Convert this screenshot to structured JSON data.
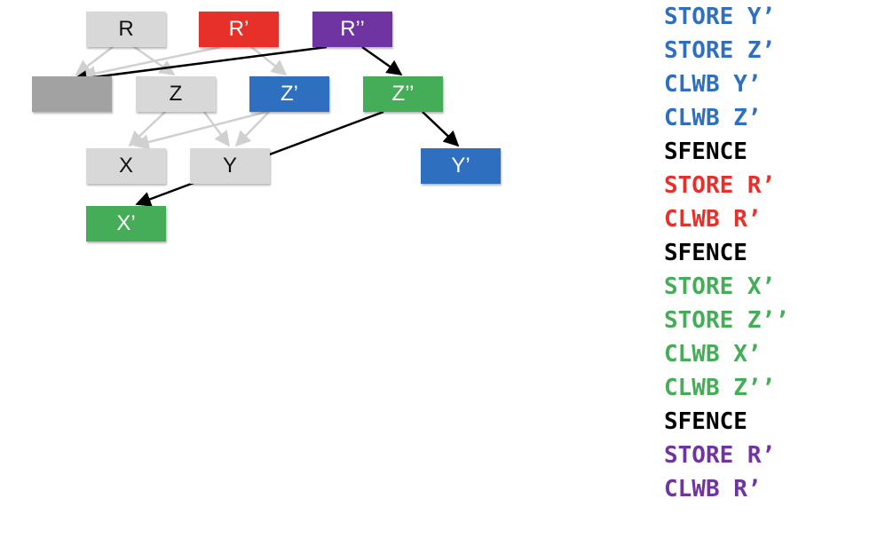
{
  "diagram": {
    "nodes": {
      "R": "R",
      "R_prime": "R’",
      "R_double_prime": "R’’",
      "blank": "",
      "Z": "Z",
      "Z_prime": "Z’",
      "Z_double_prime": "Z’’",
      "X": "X",
      "Y": "Y",
      "Y_prime": "Y’",
      "X_prime": "X’"
    }
  },
  "code": [
    {
      "text": "STORE Y’",
      "color": "#2f6fc0"
    },
    {
      "text": "STORE Z’",
      "color": "#2f6fc0"
    },
    {
      "text": "CLWB Y’",
      "color": "#2f6fc0"
    },
    {
      "text": "CLWB Z’",
      "color": "#2f6fc0"
    },
    {
      "text": "SFENCE",
      "color": "#000000"
    },
    {
      "text": "STORE R’",
      "color": "#e8302a"
    },
    {
      "text": "CLWB R’",
      "color": "#e8302a"
    },
    {
      "text": "SFENCE",
      "color": "#000000"
    },
    {
      "text": "STORE X’",
      "color": "#45ad57"
    },
    {
      "text": "STORE Z’’",
      "color": "#45ad57"
    },
    {
      "text": "CLWB X’",
      "color": "#45ad57"
    },
    {
      "text": "CLWB Z’’",
      "color": "#45ad57"
    },
    {
      "text": "SFENCE",
      "color": "#000000"
    },
    {
      "text": "STORE R’",
      "color": "#6f34a2"
    },
    {
      "text": "CLWB R’",
      "color": "#6f34a2"
    }
  ]
}
